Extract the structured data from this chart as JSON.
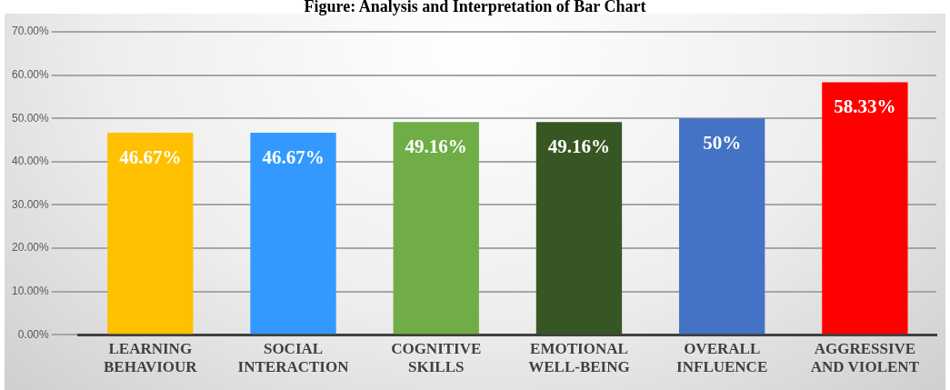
{
  "chart_data": {
    "type": "bar",
    "title": "Figure: Analysis and Interpretation of Bar Chart",
    "categories": [
      "LEARNING BEHAVIOUR",
      "SOCIAL INTERACTION",
      "COGNITIVE SKILLS",
      "EMOTIONAL WELL-BEING",
      "OVERALL INFLUENCE",
      "AGGRESSIVE AND VIOLENT"
    ],
    "values": [
      46.67,
      46.67,
      49.16,
      49.16,
      50,
      58.33
    ],
    "colors": [
      "#ffc000",
      "#3399ff",
      "#70ad47",
      "#375623",
      "#4472c4",
      "#ff0000"
    ],
    "value_labels": [
      "46.67%",
      "46.67%",
      "49.16%",
      "49.16%",
      "50%",
      "58.33%"
    ],
    "ylim": [
      0,
      70
    ],
    "yticks": [
      {
        "value": 0,
        "label": "0.00%"
      },
      {
        "value": 10,
        "label": "10.00%"
      },
      {
        "value": 20,
        "label": "20.00%"
      },
      {
        "value": 30,
        "label": "30.00%"
      },
      {
        "value": 40,
        "label": "40.00%"
      },
      {
        "value": 50,
        "label": "50.00%"
      },
      {
        "value": 60,
        "label": "60.00%"
      },
      {
        "value": 70,
        "label": "70.00%"
      }
    ],
    "grid": "y",
    "legend": false
  }
}
